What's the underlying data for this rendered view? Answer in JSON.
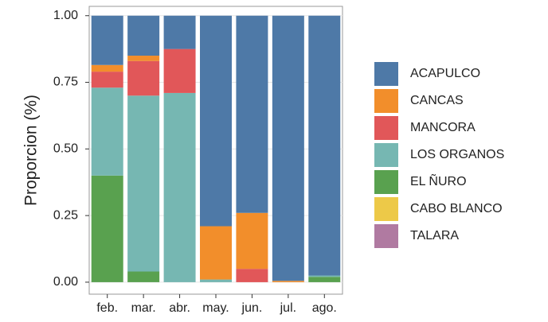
{
  "chart_data": {
    "type": "stacked_bar",
    "y_label": "Proporcion (%)",
    "categories": [
      "feb.",
      "mar.",
      "abr.",
      "may.",
      "jun.",
      "jul.",
      "ago."
    ],
    "series": [
      {
        "name": "TALARA",
        "color": "#b07aa1",
        "values": [
          0,
          0,
          0,
          0,
          0,
          0,
          0
        ]
      },
      {
        "name": "CABO BLANCO",
        "color": "#edc948",
        "values": [
          0,
          0,
          0,
          0,
          0,
          0,
          0
        ]
      },
      {
        "name": "EL ÑURO",
        "color": "#59a14f",
        "values": [
          0.4,
          0.04,
          0,
          0,
          0,
          0,
          0.02
        ]
      },
      {
        "name": "LOS ORGANOS",
        "color": "#76b7b2",
        "values": [
          0.33,
          0.66,
          0.71,
          0.01,
          0,
          0,
          0.005
        ]
      },
      {
        "name": "MANCORA",
        "color": "#e15759",
        "values": [
          0.06,
          0.13,
          0.165,
          0,
          0.05,
          0,
          0
        ]
      },
      {
        "name": "CANCAS",
        "color": "#f28e2b",
        "values": [
          0.025,
          0.02,
          0,
          0.2,
          0.21,
          0.005,
          0
        ]
      },
      {
        "name": "ACAPULCO",
        "color": "#4e79a7",
        "values": [
          0.185,
          0.15,
          0.125,
          0.79,
          0.74,
          0.995,
          0.975
        ]
      }
    ],
    "ylim": [
      -0.045,
      1.035
    ],
    "yticks": [
      {
        "value": 0,
        "label": "0.00"
      },
      {
        "value": 0.25,
        "label": "0.25"
      },
      {
        "value": 0.5,
        "label": "0.50"
      },
      {
        "value": 0.75,
        "label": "0.75"
      },
      {
        "value": 1,
        "label": "1.00"
      }
    ],
    "grid": true
  }
}
